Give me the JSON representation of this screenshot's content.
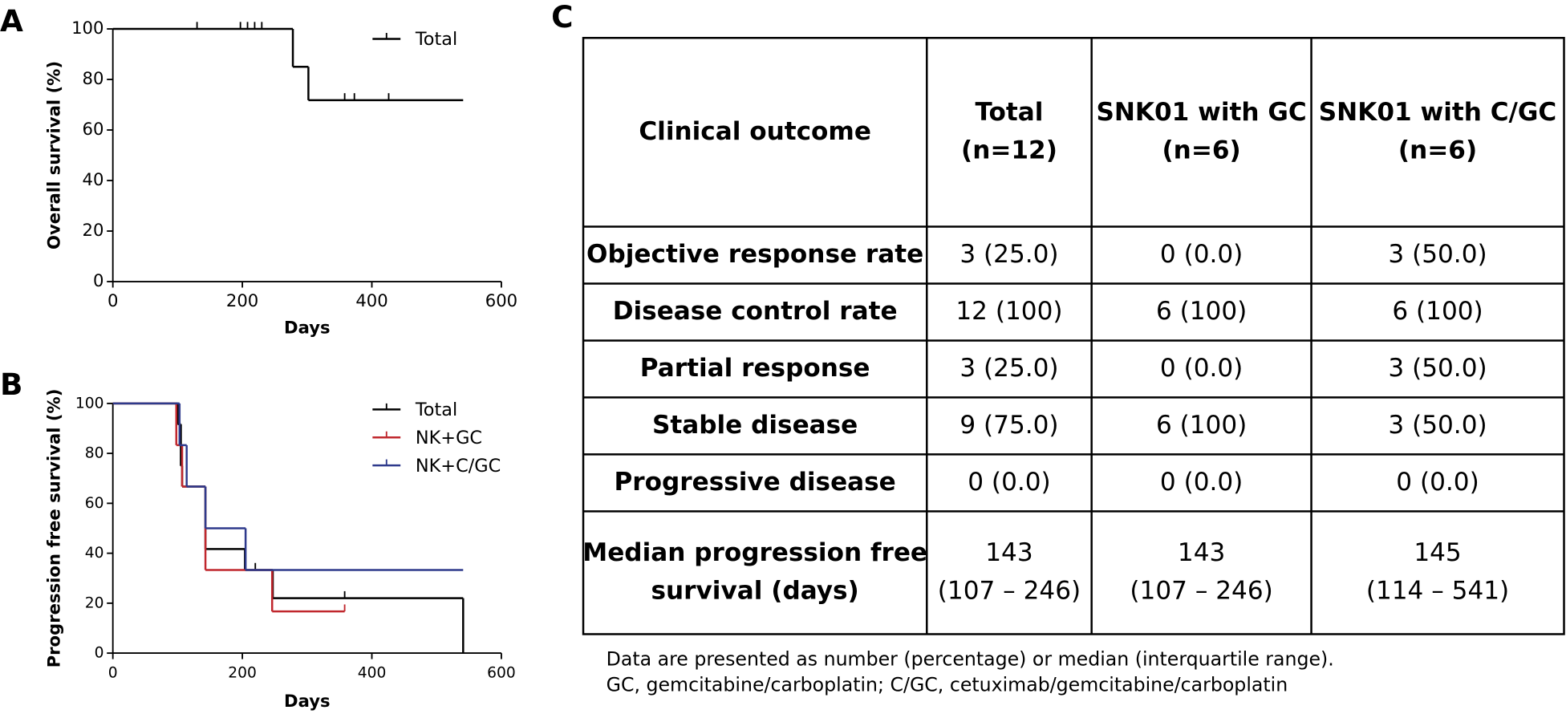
{
  "chart_data": [
    {
      "type": "step",
      "panel_label": "A",
      "xlabel": "Days",
      "ylabel": "Overall survival (%)",
      "xlim": [
        0,
        600
      ],
      "ylim": [
        0,
        100
      ],
      "xticks": [
        0,
        200,
        400,
        600
      ],
      "yticks": [
        0,
        20,
        40,
        60,
        80,
        100
      ],
      "legend": "upper right",
      "series": [
        {
          "name": "Total",
          "color": "#000000",
          "x": [
            0,
            278,
            302,
            541
          ],
          "values": [
            100,
            85,
            71.8,
            71.8
          ],
          "censor_x": [
            130,
            197,
            208,
            219,
            230,
            358,
            373,
            426
          ],
          "censor_values": [
            100,
            100,
            100,
            100,
            100,
            71.8,
            71.8,
            71.8
          ]
        }
      ]
    },
    {
      "type": "step",
      "panel_label": "B",
      "xlabel": "Days",
      "ylabel": "Progression free survival (%)",
      "xlim": [
        0,
        600
      ],
      "ylim": [
        0,
        100
      ],
      "xticks": [
        0,
        200,
        400,
        600
      ],
      "yticks": [
        0,
        20,
        40,
        60,
        80,
        100
      ],
      "legend": "upper right",
      "series": [
        {
          "name": "Total",
          "color": "#000000",
          "x": [
            0,
            100,
            105,
            107,
            143,
            204,
            247,
            541
          ],
          "values": [
            100,
            91.7,
            75,
            66.7,
            41.7,
            33.3,
            22,
            0
          ],
          "censor_x": [
            220,
            358
          ],
          "censor_values": [
            33.3,
            22
          ]
        },
        {
          "name": "NK+GC",
          "color": "#c0272d",
          "x": [
            0,
            98,
            107,
            143,
            246,
            358
          ],
          "values": [
            100,
            83.3,
            66.7,
            33.3,
            16.7,
            16.7
          ],
          "censor_x": [
            358
          ],
          "censor_values": [
            16.7
          ]
        },
        {
          "name": "NK+C/GC",
          "color": "#2e3a8c",
          "x": [
            0,
            103,
            114,
            143,
            205,
            541
          ],
          "values": [
            100,
            83.3,
            66.7,
            50,
            33.3,
            33.3
          ],
          "censor_x": [],
          "censor_values": []
        }
      ]
    }
  ],
  "table": {
    "panel_label": "C",
    "header": [
      "Clinical outcome",
      "Total\n(n=12)",
      "SNK01 with GC\n(n=6)",
      "SNK01 with C/GC\n(n=6)"
    ],
    "rows": [
      [
        "Objective response rate",
        "3 (25.0)",
        "0 (0.0)",
        "3 (50.0)"
      ],
      [
        "Disease control rate",
        "12 (100)",
        "6 (100)",
        "6 (100)"
      ],
      [
        "Partial response",
        "3 (25.0)",
        "0 (0.0)",
        "3 (50.0)"
      ],
      [
        "Stable disease",
        "9 (75.0)",
        "6 (100)",
        "3 (50.0)"
      ],
      [
        "Progressive disease",
        "0 (0.0)",
        "0 (0.0)",
        "0 (0.0)"
      ],
      [
        "Median progression free\nsurvival (days)",
        "143\n(107 – 246)",
        "143\n(107 – 246)",
        "145\n(114 – 541)"
      ]
    ],
    "notes": [
      "Data are presented as number (percentage) or median (interquartile range).",
      "GC, gemcitabine/carboplatin; C/GC, cetuximab/gemcitabine/carboplatin"
    ]
  }
}
